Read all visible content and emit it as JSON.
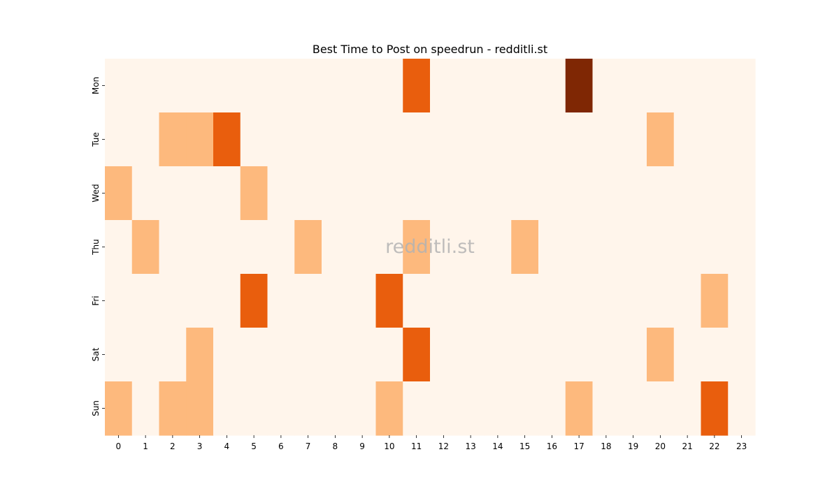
{
  "chart_data": {
    "type": "heatmap",
    "title": "Best Time to Post on speedrun - redditli.st",
    "watermark": "redditli.st",
    "x_categories": [
      "0",
      "1",
      "2",
      "3",
      "4",
      "5",
      "6",
      "7",
      "8",
      "9",
      "10",
      "11",
      "12",
      "13",
      "14",
      "15",
      "16",
      "17",
      "18",
      "19",
      "20",
      "21",
      "22",
      "23"
    ],
    "y_categories": [
      "Mon",
      "Tue",
      "Wed",
      "Thu",
      "Fri",
      "Sat",
      "Sun"
    ],
    "xlabel": "",
    "ylabel": "",
    "colorscale": "Oranges",
    "value_range": [
      0,
      3
    ],
    "colors": [
      "#fff5eb",
      "#fdb97d",
      "#e95e0d",
      "#7f2704"
    ],
    "values": [
      [
        0,
        0,
        0,
        0,
        0,
        0,
        0,
        0,
        0,
        0,
        0,
        2,
        0,
        0,
        0,
        0,
        0,
        3,
        0,
        0,
        0,
        0,
        0,
        0
      ],
      [
        0,
        0,
        1,
        1,
        2,
        0,
        0,
        0,
        0,
        0,
        0,
        0,
        0,
        0,
        0,
        0,
        0,
        0,
        0,
        0,
        1,
        0,
        0,
        0
      ],
      [
        1,
        0,
        0,
        0,
        0,
        1,
        0,
        0,
        0,
        0,
        0,
        0,
        0,
        0,
        0,
        0,
        0,
        0,
        0,
        0,
        0,
        0,
        0,
        0
      ],
      [
        0,
        1,
        0,
        0,
        0,
        0,
        0,
        1,
        0,
        0,
        0,
        1,
        0,
        0,
        0,
        1,
        0,
        0,
        0,
        0,
        0,
        0,
        0,
        0
      ],
      [
        0,
        0,
        0,
        0,
        0,
        2,
        0,
        0,
        0,
        0,
        2,
        0,
        0,
        0,
        0,
        0,
        0,
        0,
        0,
        0,
        0,
        0,
        1,
        0
      ],
      [
        0,
        0,
        0,
        1,
        0,
        0,
        0,
        0,
        0,
        0,
        0,
        2,
        0,
        0,
        0,
        0,
        0,
        0,
        0,
        0,
        1,
        0,
        0,
        0
      ],
      [
        1,
        0,
        1,
        1,
        0,
        0,
        0,
        0,
        0,
        0,
        1,
        0,
        0,
        0,
        0,
        0,
        0,
        1,
        0,
        0,
        0,
        0,
        2,
        0
      ]
    ]
  }
}
